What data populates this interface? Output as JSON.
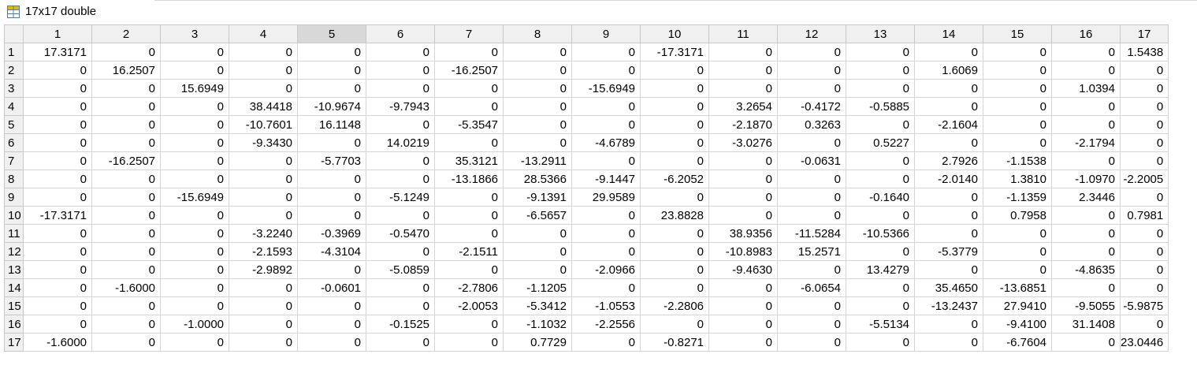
{
  "title": "17x17 double",
  "column_headers": [
    "1",
    "2",
    "3",
    "4",
    "5",
    "6",
    "7",
    "8",
    "9",
    "10",
    "11",
    "12",
    "13",
    "14",
    "15",
    "16",
    "17"
  ],
  "selected_column": "5",
  "rows": [
    {
      "label": "1",
      "cells": [
        "17.3171",
        "0",
        "0",
        "0",
        "0",
        "0",
        "0",
        "0",
        "0",
        "-17.3171",
        "0",
        "0",
        "0",
        "0",
        "0",
        "0",
        "1.5438"
      ]
    },
    {
      "label": "2",
      "cells": [
        "0",
        "16.2507",
        "0",
        "0",
        "0",
        "0",
        "-16.2507",
        "0",
        "0",
        "0",
        "0",
        "0",
        "0",
        "1.6069",
        "0",
        "0",
        "0"
      ]
    },
    {
      "label": "3",
      "cells": [
        "0",
        "0",
        "15.6949",
        "0",
        "0",
        "0",
        "0",
        "0",
        "-15.6949",
        "0",
        "0",
        "0",
        "0",
        "0",
        "0",
        "1.0394",
        "0"
      ]
    },
    {
      "label": "4",
      "cells": [
        "0",
        "0",
        "0",
        "38.4418",
        "-10.9674",
        "-9.7943",
        "0",
        "0",
        "0",
        "0",
        "3.2654",
        "-0.4172",
        "-0.5885",
        "0",
        "0",
        "0",
        "0"
      ]
    },
    {
      "label": "5",
      "cells": [
        "0",
        "0",
        "0",
        "-10.7601",
        "16.1148",
        "0",
        "-5.3547",
        "0",
        "0",
        "0",
        "-2.1870",
        "0.3263",
        "0",
        "-2.1604",
        "0",
        "0",
        "0"
      ]
    },
    {
      "label": "6",
      "cells": [
        "0",
        "0",
        "0",
        "-9.3430",
        "0",
        "14.0219",
        "0",
        "0",
        "-4.6789",
        "0",
        "-3.0276",
        "0",
        "0.5227",
        "0",
        "0",
        "-2.1794",
        "0"
      ]
    },
    {
      "label": "7",
      "cells": [
        "0",
        "-16.2507",
        "0",
        "0",
        "-5.7703",
        "0",
        "35.3121",
        "-13.2911",
        "0",
        "0",
        "0",
        "-0.0631",
        "0",
        "2.7926",
        "-1.1538",
        "0",
        "0"
      ]
    },
    {
      "label": "8",
      "cells": [
        "0",
        "0",
        "0",
        "0",
        "0",
        "0",
        "-13.1866",
        "28.5366",
        "-9.1447",
        "-6.2052",
        "0",
        "0",
        "0",
        "-2.0140",
        "1.3810",
        "-1.0970",
        "-2.2005"
      ]
    },
    {
      "label": "9",
      "cells": [
        "0",
        "0",
        "-15.6949",
        "0",
        "0",
        "-5.1249",
        "0",
        "-9.1391",
        "29.9589",
        "0",
        "0",
        "0",
        "-0.1640",
        "0",
        "-1.1359",
        "2.3446",
        "0"
      ]
    },
    {
      "label": "10",
      "cells": [
        "-17.3171",
        "0",
        "0",
        "0",
        "0",
        "0",
        "0",
        "-6.5657",
        "0",
        "23.8828",
        "0",
        "0",
        "0",
        "0",
        "0.7958",
        "0",
        "0.7981"
      ]
    },
    {
      "label": "11",
      "cells": [
        "0",
        "0",
        "0",
        "-3.2240",
        "-0.3969",
        "-0.5470",
        "0",
        "0",
        "0",
        "0",
        "38.9356",
        "-11.5284",
        "-10.5366",
        "0",
        "0",
        "0",
        "0"
      ]
    },
    {
      "label": "12",
      "cells": [
        "0",
        "0",
        "0",
        "-2.1593",
        "-4.3104",
        "0",
        "-2.1511",
        "0",
        "0",
        "0",
        "-10.8983",
        "15.2571",
        "0",
        "-5.3779",
        "0",
        "0",
        "0"
      ]
    },
    {
      "label": "13",
      "cells": [
        "0",
        "0",
        "0",
        "-2.9892",
        "0",
        "-5.0859",
        "0",
        "0",
        "-2.0966",
        "0",
        "-9.4630",
        "0",
        "13.4279",
        "0",
        "0",
        "-4.8635",
        "0"
      ]
    },
    {
      "label": "14",
      "cells": [
        "0",
        "-1.6000",
        "0",
        "0",
        "-0.0601",
        "0",
        "-2.7806",
        "-1.1205",
        "0",
        "0",
        "0",
        "-6.0654",
        "0",
        "35.4650",
        "-13.6851",
        "0",
        "0"
      ]
    },
    {
      "label": "15",
      "cells": [
        "0",
        "0",
        "0",
        "0",
        "0",
        "0",
        "-2.0053",
        "-5.3412",
        "-1.0553",
        "-2.2806",
        "0",
        "0",
        "0",
        "-13.2437",
        "27.9410",
        "-9.5055",
        "-5.9875"
      ]
    },
    {
      "label": "16",
      "cells": [
        "0",
        "0",
        "-1.0000",
        "0",
        "0",
        "-0.1525",
        "0",
        "-1.1032",
        "-2.2556",
        "0",
        "0",
        "0",
        "-5.5134",
        "0",
        "-9.4100",
        "31.1408",
        "0"
      ]
    },
    {
      "label": "17",
      "cells": [
        "-1.6000",
        "0",
        "0",
        "0",
        "0",
        "0",
        "0",
        "0.7729",
        "0",
        "-0.8271",
        "0",
        "0",
        "0",
        "0",
        "-6.7604",
        "0",
        "23.0446"
      ]
    }
  ],
  "icon": "table-grid-icon",
  "colors": {
    "header_bg": "#f0f0f0",
    "selected_header_bg": "#d8d8d8",
    "grid_line": "#d4d4d4",
    "icon_accent": "#e6b800",
    "icon_grid": "#4a7ebb"
  }
}
